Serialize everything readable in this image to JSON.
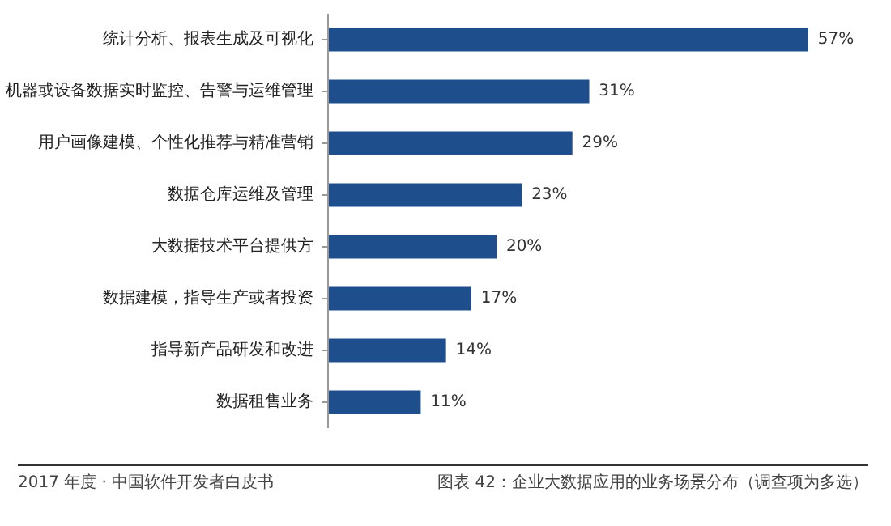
{
  "chart_data": {
    "type": "bar",
    "orientation": "horizontal",
    "categories": [
      "统计分析、报表生成及可视化",
      "机器或设备数据实时监控、告警与运维管理",
      "用户画像建模、个性化推荐与精准营销",
      "数据仓库运维及管理",
      "大数据技术平台提供方",
      "数据建模，指导生产或者投资",
      "指导新产品研发和改进",
      "数据租售业务"
    ],
    "values": [
      57,
      31,
      29,
      23,
      20,
      17,
      14,
      11
    ],
    "value_labels": [
      "57%",
      "31%",
      "29%",
      "23%",
      "20%",
      "17%",
      "14%",
      "11%"
    ],
    "color": "#1f4e8c",
    "grid": false,
    "annotations": [
      "2017 年度 · 中国软件开发者白皮书",
      "图表 42：企业大数据应用的业务场景分布（调查项为多选）"
    ]
  }
}
